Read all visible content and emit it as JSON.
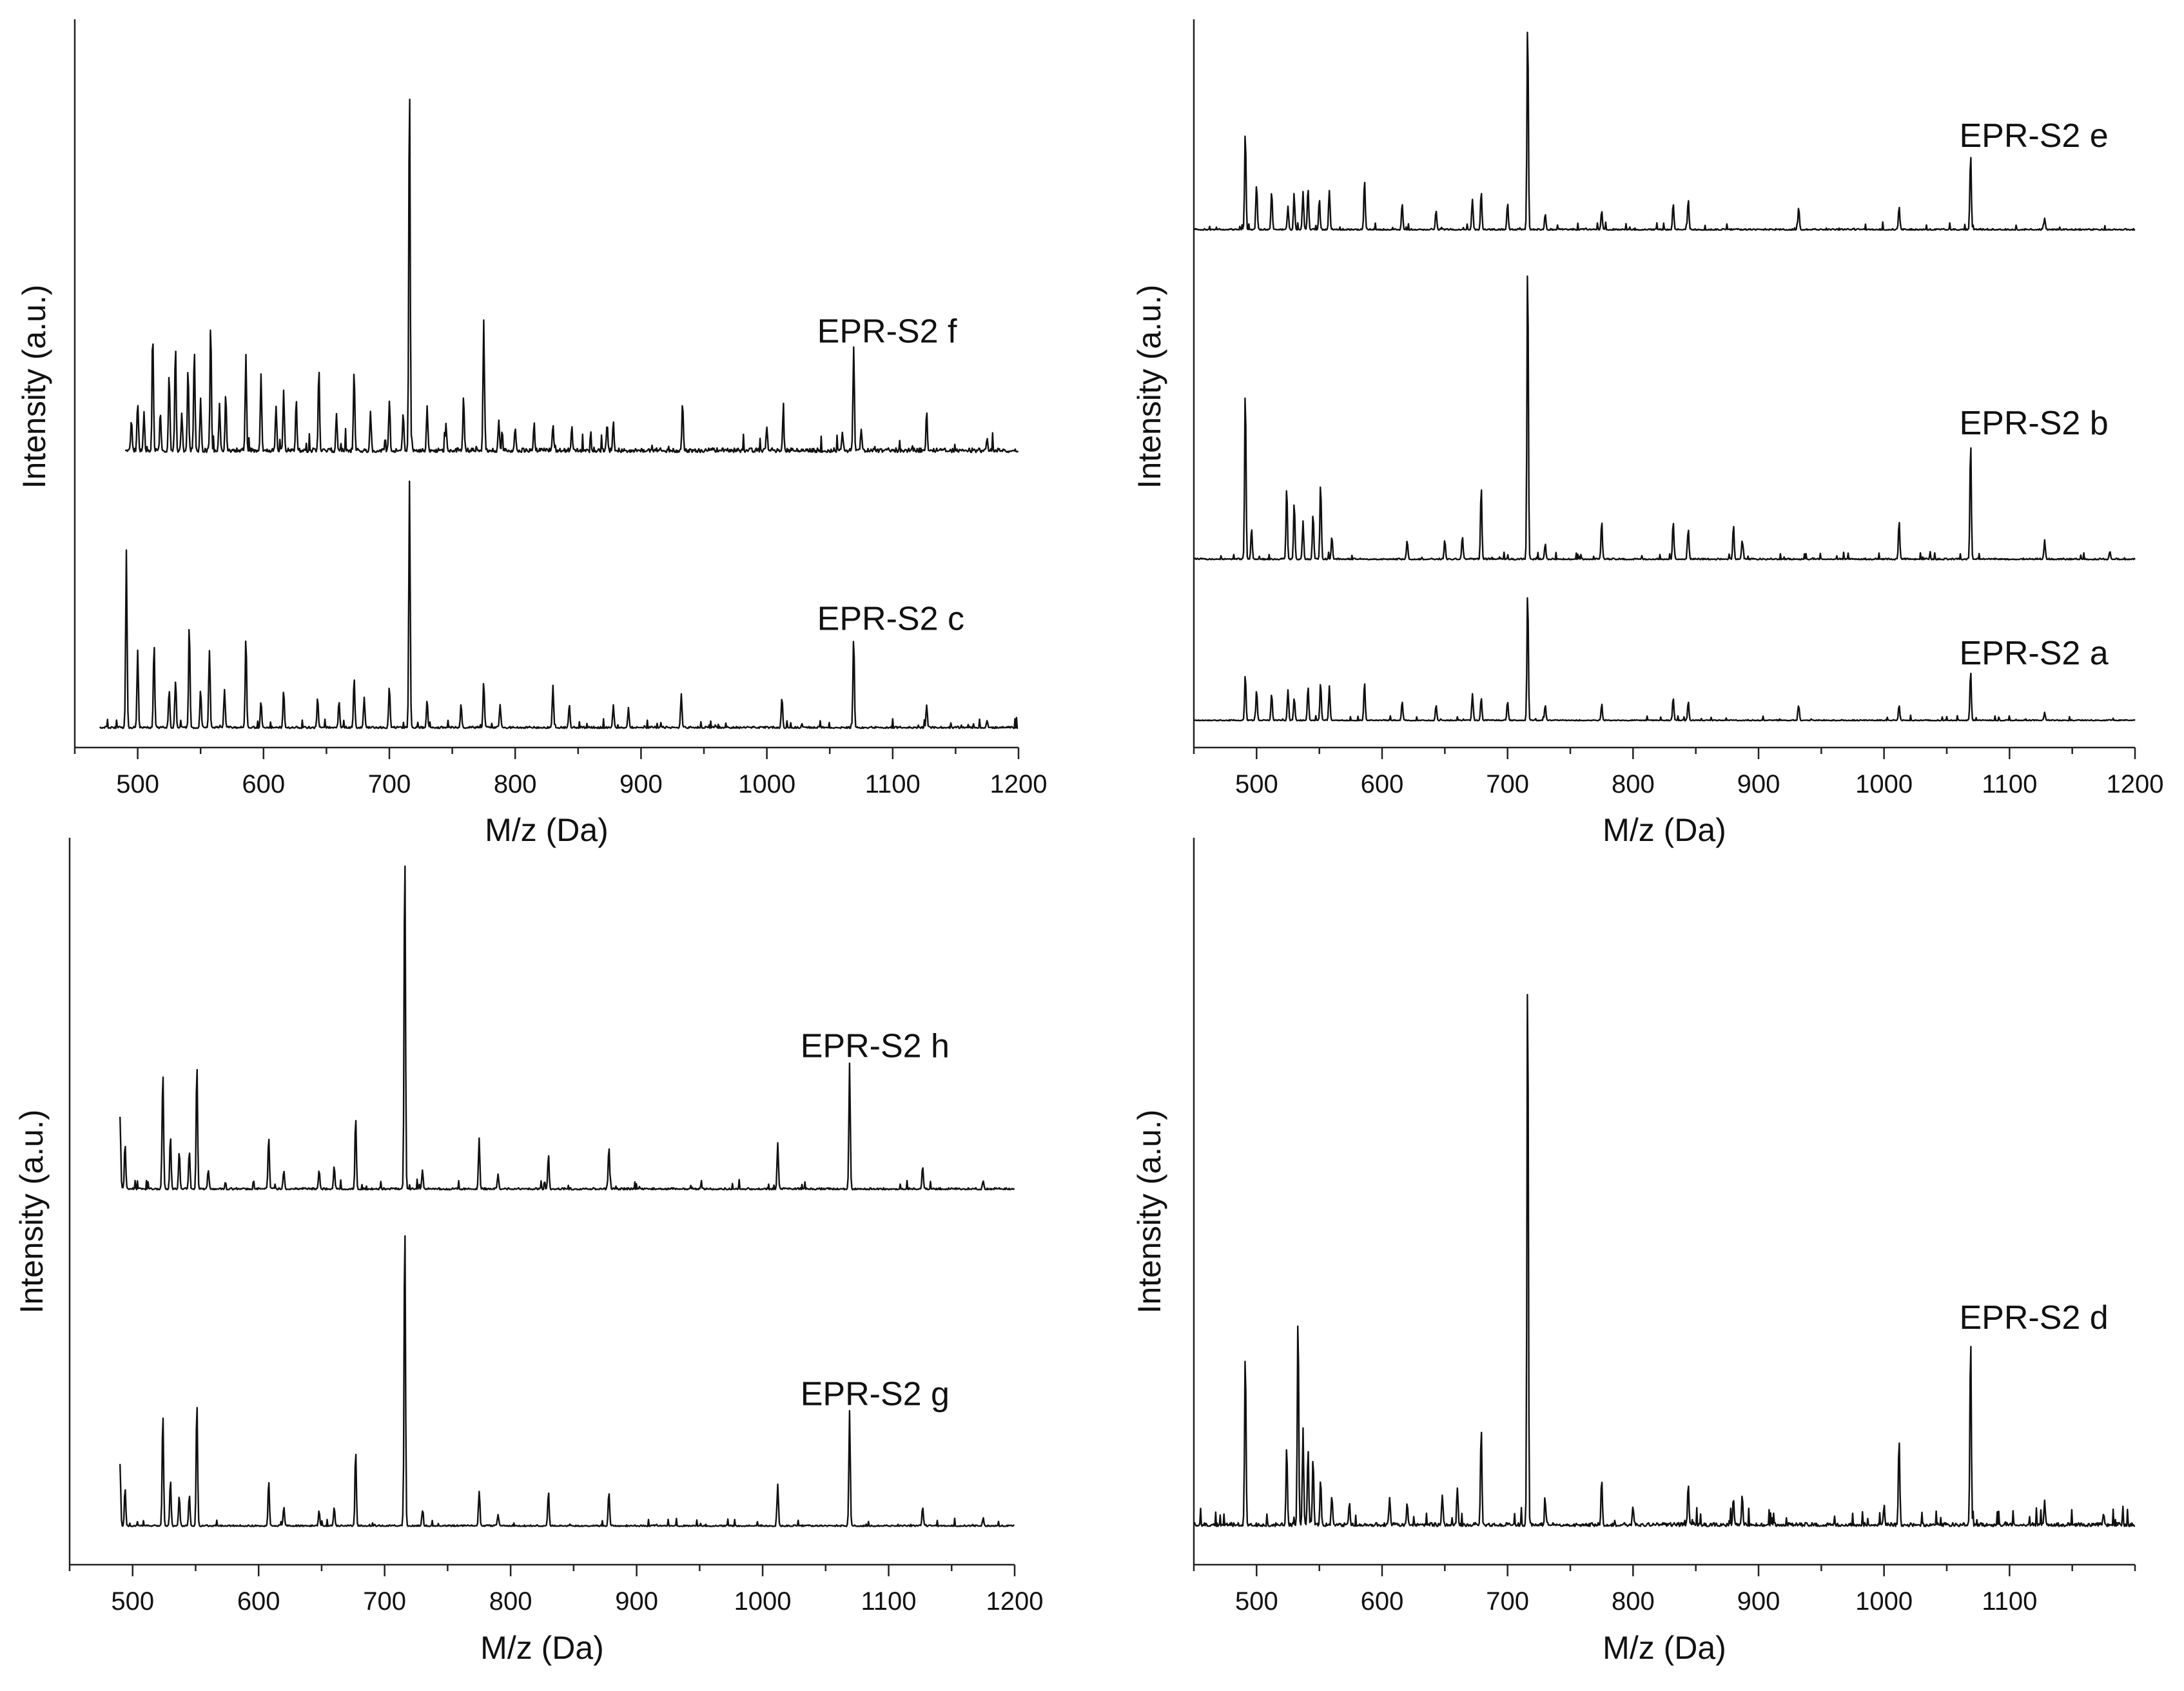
{
  "chart_data": [
    {
      "type": "line",
      "panel": "top-left",
      "xlabel": "M/z (Da)",
      "ylabel": "Intensity (a.u.)",
      "xlim": [
        450,
        1200
      ],
      "xticks": [
        500,
        600,
        700,
        800,
        900,
        1000,
        1100,
        1200
      ],
      "ylim": [
        0,
        1.9
      ],
      "series": [
        {
          "name": "EPR-S2 f",
          "label_x": 1040,
          "baseline": 0.77,
          "x_start": 490,
          "x_end": 1200,
          "noise": 0.018,
          "peaks": [
            [
              495,
              0.08
            ],
            [
              500,
              0.13
            ],
            [
              505,
              0.1
            ],
            [
              512,
              0.3
            ],
            [
              518,
              0.1
            ],
            [
              525,
              0.2
            ],
            [
              530,
              0.28
            ],
            [
              535,
              0.1
            ],
            [
              540,
              0.22
            ],
            [
              545,
              0.27
            ],
            [
              550,
              0.14
            ],
            [
              558,
              0.33
            ],
            [
              565,
              0.12
            ],
            [
              570,
              0.15
            ],
            [
              586,
              0.25
            ],
            [
              598,
              0.2
            ],
            [
              610,
              0.12
            ],
            [
              616,
              0.16
            ],
            [
              626,
              0.14
            ],
            [
              644,
              0.22
            ],
            [
              658,
              0.1
            ],
            [
              672,
              0.21
            ],
            [
              685,
              0.1
            ],
            [
              700,
              0.13
            ],
            [
              711,
              0.1
            ],
            [
              716,
              0.98
            ],
            [
              730,
              0.12
            ],
            [
              745,
              0.07
            ],
            [
              759,
              0.14
            ],
            [
              775,
              0.34
            ],
            [
              787,
              0.08
            ],
            [
              800,
              0.06
            ],
            [
              815,
              0.07
            ],
            [
              830,
              0.07
            ],
            [
              845,
              0.06
            ],
            [
              873,
              0.07
            ],
            [
              878,
              0.08
            ],
            [
              933,
              0.13
            ],
            [
              1000,
              0.06
            ],
            [
              1013,
              0.1
            ],
            [
              1060,
              0.05
            ],
            [
              1069,
              0.27
            ],
            [
              1075,
              0.06
            ],
            [
              1127,
              0.1
            ],
            [
              1175,
              0.03
            ]
          ]
        },
        {
          "name": "EPR-S2 c",
          "label_x": 1040,
          "baseline": 0.05,
          "x_start": 470,
          "x_end": 1200,
          "noise": 0.008,
          "peaks": [
            [
              491,
              0.46
            ],
            [
              500,
              0.2
            ],
            [
              513,
              0.22
            ],
            [
              525,
              0.1
            ],
            [
              530,
              0.12
            ],
            [
              541,
              0.27
            ],
            [
              550,
              0.1
            ],
            [
              557,
              0.2
            ],
            [
              569,
              0.1
            ],
            [
              586,
              0.24
            ],
            [
              598,
              0.07
            ],
            [
              616,
              0.1
            ],
            [
              643,
              0.08
            ],
            [
              660,
              0.07
            ],
            [
              672,
              0.13
            ],
            [
              680,
              0.08
            ],
            [
              700,
              0.11
            ],
            [
              716,
              0.64
            ],
            [
              730,
              0.07
            ],
            [
              757,
              0.06
            ],
            [
              775,
              0.12
            ],
            [
              788,
              0.06
            ],
            [
              830,
              0.11
            ],
            [
              843,
              0.06
            ],
            [
              878,
              0.06
            ],
            [
              890,
              0.05
            ],
            [
              932,
              0.09
            ],
            [
              1012,
              0.08
            ],
            [
              1069,
              0.24
            ],
            [
              1127,
              0.06
            ],
            [
              1175,
              0.02
            ]
          ]
        }
      ]
    },
    {
      "type": "line",
      "panel": "top-right",
      "xlabel": "M/z (Da)",
      "ylabel": "Intensity (a.u.)",
      "xlim": [
        450,
        1200
      ],
      "xticks": [
        500,
        600,
        700,
        800,
        900,
        1000,
        1100,
        1200
      ],
      "ylim": [
        0,
        1.9
      ],
      "series": [
        {
          "name": "EPR-S2 e",
          "label_x": 1060,
          "baseline": 1.35,
          "x_start": 450,
          "x_end": 1200,
          "noise": 0.006,
          "peaks": [
            [
              491,
              0.26
            ],
            [
              500,
              0.12
            ],
            [
              512,
              0.1
            ],
            [
              525,
              0.06
            ],
            [
              530,
              0.08
            ],
            [
              537,
              0.1
            ],
            [
              541,
              0.11
            ],
            [
              550,
              0.08
            ],
            [
              558,
              0.1
            ],
            [
              586,
              0.13
            ],
            [
              616,
              0.07
            ],
            [
              643,
              0.05
            ],
            [
              672,
              0.08
            ],
            [
              679,
              0.1
            ],
            [
              700,
              0.07
            ],
            [
              716,
              0.55
            ],
            [
              730,
              0.04
            ],
            [
              775,
              0.05
            ],
            [
              832,
              0.07
            ],
            [
              844,
              0.08
            ],
            [
              932,
              0.06
            ],
            [
              1012,
              0.06
            ],
            [
              1069,
              0.2
            ],
            [
              1128,
              0.03
            ]
          ]
        },
        {
          "name": "EPR-S2 b",
          "label_x": 1060,
          "baseline": 0.49,
          "x_start": 450,
          "x_end": 1200,
          "noise": 0.006,
          "peaks": [
            [
              491,
              0.45
            ],
            [
              496,
              0.08
            ],
            [
              524,
              0.19
            ],
            [
              530,
              0.15
            ],
            [
              537,
              0.1
            ],
            [
              545,
              0.12
            ],
            [
              551,
              0.2
            ],
            [
              560,
              0.06
            ],
            [
              620,
              0.05
            ],
            [
              650,
              0.05
            ],
            [
              664,
              0.06
            ],
            [
              679,
              0.19
            ],
            [
              716,
              0.79
            ],
            [
              730,
              0.04
            ],
            [
              775,
              0.1
            ],
            [
              832,
              0.1
            ],
            [
              844,
              0.08
            ],
            [
              880,
              0.09
            ],
            [
              887,
              0.05
            ],
            [
              1012,
              0.1
            ],
            [
              1069,
              0.31
            ],
            [
              1128,
              0.05
            ],
            [
              1180,
              0.02
            ]
          ]
        },
        {
          "name": "EPR-S2 a",
          "label_x": 1060,
          "baseline": 0.07,
          "x_start": 450,
          "x_end": 1200,
          "noise": 0.004,
          "peaks": [
            [
              491,
              0.12
            ],
            [
              500,
              0.08
            ],
            [
              512,
              0.07
            ],
            [
              525,
              0.08
            ],
            [
              530,
              0.06
            ],
            [
              541,
              0.09
            ],
            [
              551,
              0.1
            ],
            [
              558,
              0.09
            ],
            [
              586,
              0.1
            ],
            [
              616,
              0.05
            ],
            [
              643,
              0.04
            ],
            [
              672,
              0.07
            ],
            [
              679,
              0.06
            ],
            [
              700,
              0.05
            ],
            [
              716,
              0.34
            ],
            [
              730,
              0.04
            ],
            [
              775,
              0.04
            ],
            [
              832,
              0.06
            ],
            [
              844,
              0.05
            ],
            [
              932,
              0.04
            ],
            [
              1012,
              0.04
            ],
            [
              1069,
              0.13
            ],
            [
              1128,
              0.02
            ]
          ]
        }
      ]
    },
    {
      "type": "line",
      "panel": "bottom-left",
      "xlabel": "M/z (Da)",
      "ylabel": "Intensity (a.u.)",
      "xlim": [
        450,
        1200
      ],
      "xticks": [
        500,
        600,
        700,
        800,
        900,
        1000,
        1100,
        1200
      ],
      "ylim": [
        0,
        1.9
      ],
      "series": [
        {
          "name": "EPR-S2 h",
          "label_x": 1030,
          "baseline": 0.98,
          "x_start": 490,
          "x_end": 1200,
          "noise": 0.008,
          "peaks": [
            [
              490,
              0.19
            ],
            [
              494,
              0.12
            ],
            [
              524,
              0.31
            ],
            [
              530,
              0.14
            ],
            [
              537,
              0.1
            ],
            [
              545,
              0.1
            ],
            [
              551,
              0.33
            ],
            [
              560,
              0.05
            ],
            [
              608,
              0.14
            ],
            [
              620,
              0.05
            ],
            [
              648,
              0.05
            ],
            [
              660,
              0.06
            ],
            [
              677,
              0.19
            ],
            [
              716,
              0.9
            ],
            [
              730,
              0.05
            ],
            [
              775,
              0.13
            ],
            [
              790,
              0.04
            ],
            [
              830,
              0.09
            ],
            [
              878,
              0.11
            ],
            [
              1012,
              0.12
            ],
            [
              1069,
              0.33
            ],
            [
              1127,
              0.06
            ],
            [
              1175,
              0.02
            ]
          ]
        },
        {
          "name": "EPR-S2 g",
          "label_x": 1030,
          "baseline": 0.1,
          "x_start": 490,
          "x_end": 1200,
          "noise": 0.006,
          "peaks": [
            [
              490,
              0.16
            ],
            [
              494,
              0.1
            ],
            [
              524,
              0.3
            ],
            [
              530,
              0.12
            ],
            [
              537,
              0.08
            ],
            [
              545,
              0.08
            ],
            [
              551,
              0.33
            ],
            [
              608,
              0.12
            ],
            [
              620,
              0.05
            ],
            [
              648,
              0.04
            ],
            [
              660,
              0.05
            ],
            [
              677,
              0.2
            ],
            [
              716,
              0.81
            ],
            [
              730,
              0.04
            ],
            [
              775,
              0.09
            ],
            [
              790,
              0.03
            ],
            [
              830,
              0.09
            ],
            [
              878,
              0.09
            ],
            [
              1012,
              0.11
            ],
            [
              1069,
              0.3
            ],
            [
              1127,
              0.05
            ],
            [
              1175,
              0.02
            ]
          ]
        }
      ]
    },
    {
      "type": "line",
      "panel": "bottom-right",
      "xlabel": "M/z (Da)",
      "ylabel": "Intensity (a.u.)",
      "xlim": [
        450,
        1200
      ],
      "xticks": [
        500,
        600,
        700,
        800,
        900,
        1000,
        1100
      ],
      "ylim": [
        0,
        1.9
      ],
      "series": [
        {
          "name": "EPR-S2 d",
          "label_x": 1060,
          "baseline": 0.1,
          "x_start": 450,
          "x_end": 1200,
          "noise": 0.015,
          "peaks": [
            [
              491,
              0.46
            ],
            [
              524,
              0.21
            ],
            [
              533,
              0.55
            ],
            [
              537,
              0.25
            ],
            [
              541,
              0.2
            ],
            [
              545,
              0.18
            ],
            [
              551,
              0.12
            ],
            [
              560,
              0.08
            ],
            [
              574,
              0.06
            ],
            [
              606,
              0.07
            ],
            [
              620,
              0.06
            ],
            [
              648,
              0.08
            ],
            [
              660,
              0.1
            ],
            [
              679,
              0.26
            ],
            [
              716,
              1.48
            ],
            [
              730,
              0.06
            ],
            [
              775,
              0.12
            ],
            [
              800,
              0.05
            ],
            [
              844,
              0.11
            ],
            [
              880,
              0.07
            ],
            [
              887,
              0.08
            ],
            [
              1000,
              0.05
            ],
            [
              1012,
              0.23
            ],
            [
              1069,
              0.5
            ],
            [
              1128,
              0.06
            ],
            [
              1175,
              0.03
            ]
          ]
        }
      ]
    }
  ]
}
